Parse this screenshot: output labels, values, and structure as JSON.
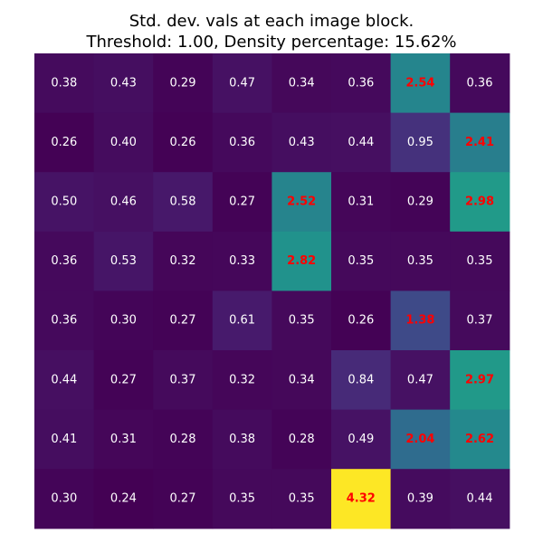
{
  "chart_data": {
    "type": "heatmap",
    "title": "Std. dev. vals at each image block.",
    "subtitle": "Threshold: 1.00, Density percentage: 15.62%",
    "threshold": 1.0,
    "density_percentage": 15.62,
    "rows": 8,
    "cols": 8,
    "colormap": "viridis",
    "vmin": 0.24,
    "vmax": 4.32,
    "grid": false,
    "label_color_default": "#ffffff",
    "label_color_above_threshold": "#ff0000",
    "values": [
      [
        0.38,
        0.43,
        0.29,
        0.47,
        0.34,
        0.36,
        2.54,
        0.36
      ],
      [
        0.26,
        0.4,
        0.26,
        0.36,
        0.43,
        0.44,
        0.95,
        2.41
      ],
      [
        0.5,
        0.46,
        0.58,
        0.27,
        2.52,
        0.31,
        0.29,
        2.98
      ],
      [
        0.36,
        0.53,
        0.32,
        0.33,
        2.82,
        0.35,
        0.35,
        0.35
      ],
      [
        0.36,
        0.3,
        0.27,
        0.61,
        0.35,
        0.26,
        1.38,
        0.37
      ],
      [
        0.44,
        0.27,
        0.37,
        0.32,
        0.34,
        0.84,
        0.47,
        2.97
      ],
      [
        0.41,
        0.31,
        0.28,
        0.38,
        0.28,
        0.49,
        2.04,
        2.62
      ],
      [
        0.3,
        0.24,
        0.27,
        0.35,
        0.35,
        4.32,
        0.39,
        0.44
      ]
    ]
  }
}
